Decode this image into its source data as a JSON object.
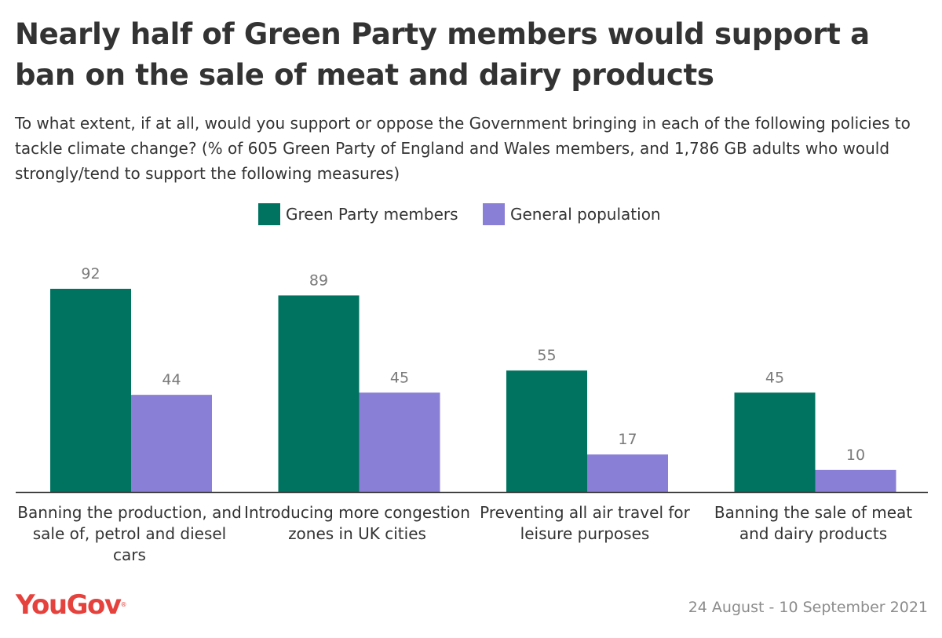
{
  "title": "Nearly half of Green Party members would support a ban on the sale of meat and dairy products",
  "subtitle": "To what extent, if at all, would you support or oppose the Government bringing in each of the following policies to tackle climate change? (% of 605 Green Party of England and Wales members, and 1,786 GB adults who would strongly/tend to support the following measures)",
  "legend": [
    {
      "label": "Green Party members",
      "color": "#007360"
    },
    {
      "label": "General population",
      "color": "#8a7fd6"
    }
  ],
  "chart_data": {
    "type": "bar",
    "categories": [
      "Banning the production, and sale of, petrol and diesel cars",
      "Introducing more congestion zones in UK cities",
      "Preventing all air travel for leisure purposes",
      "Banning the sale of meat and dairy products"
    ],
    "series": [
      {
        "name": "Green Party members",
        "values": [
          92,
          89,
          55,
          45
        ],
        "color": "#007360"
      },
      {
        "name": "General population",
        "values": [
          44,
          45,
          17,
          10
        ],
        "color": "#8a7fd6"
      }
    ],
    "ylim": [
      0,
      92
    ],
    "grid": false,
    "legend_position": "top"
  },
  "footer": {
    "logo": "YouGov",
    "logo_mark": "®",
    "logo_color": "#e6423d",
    "date": "24 August - 10 September 2021"
  }
}
